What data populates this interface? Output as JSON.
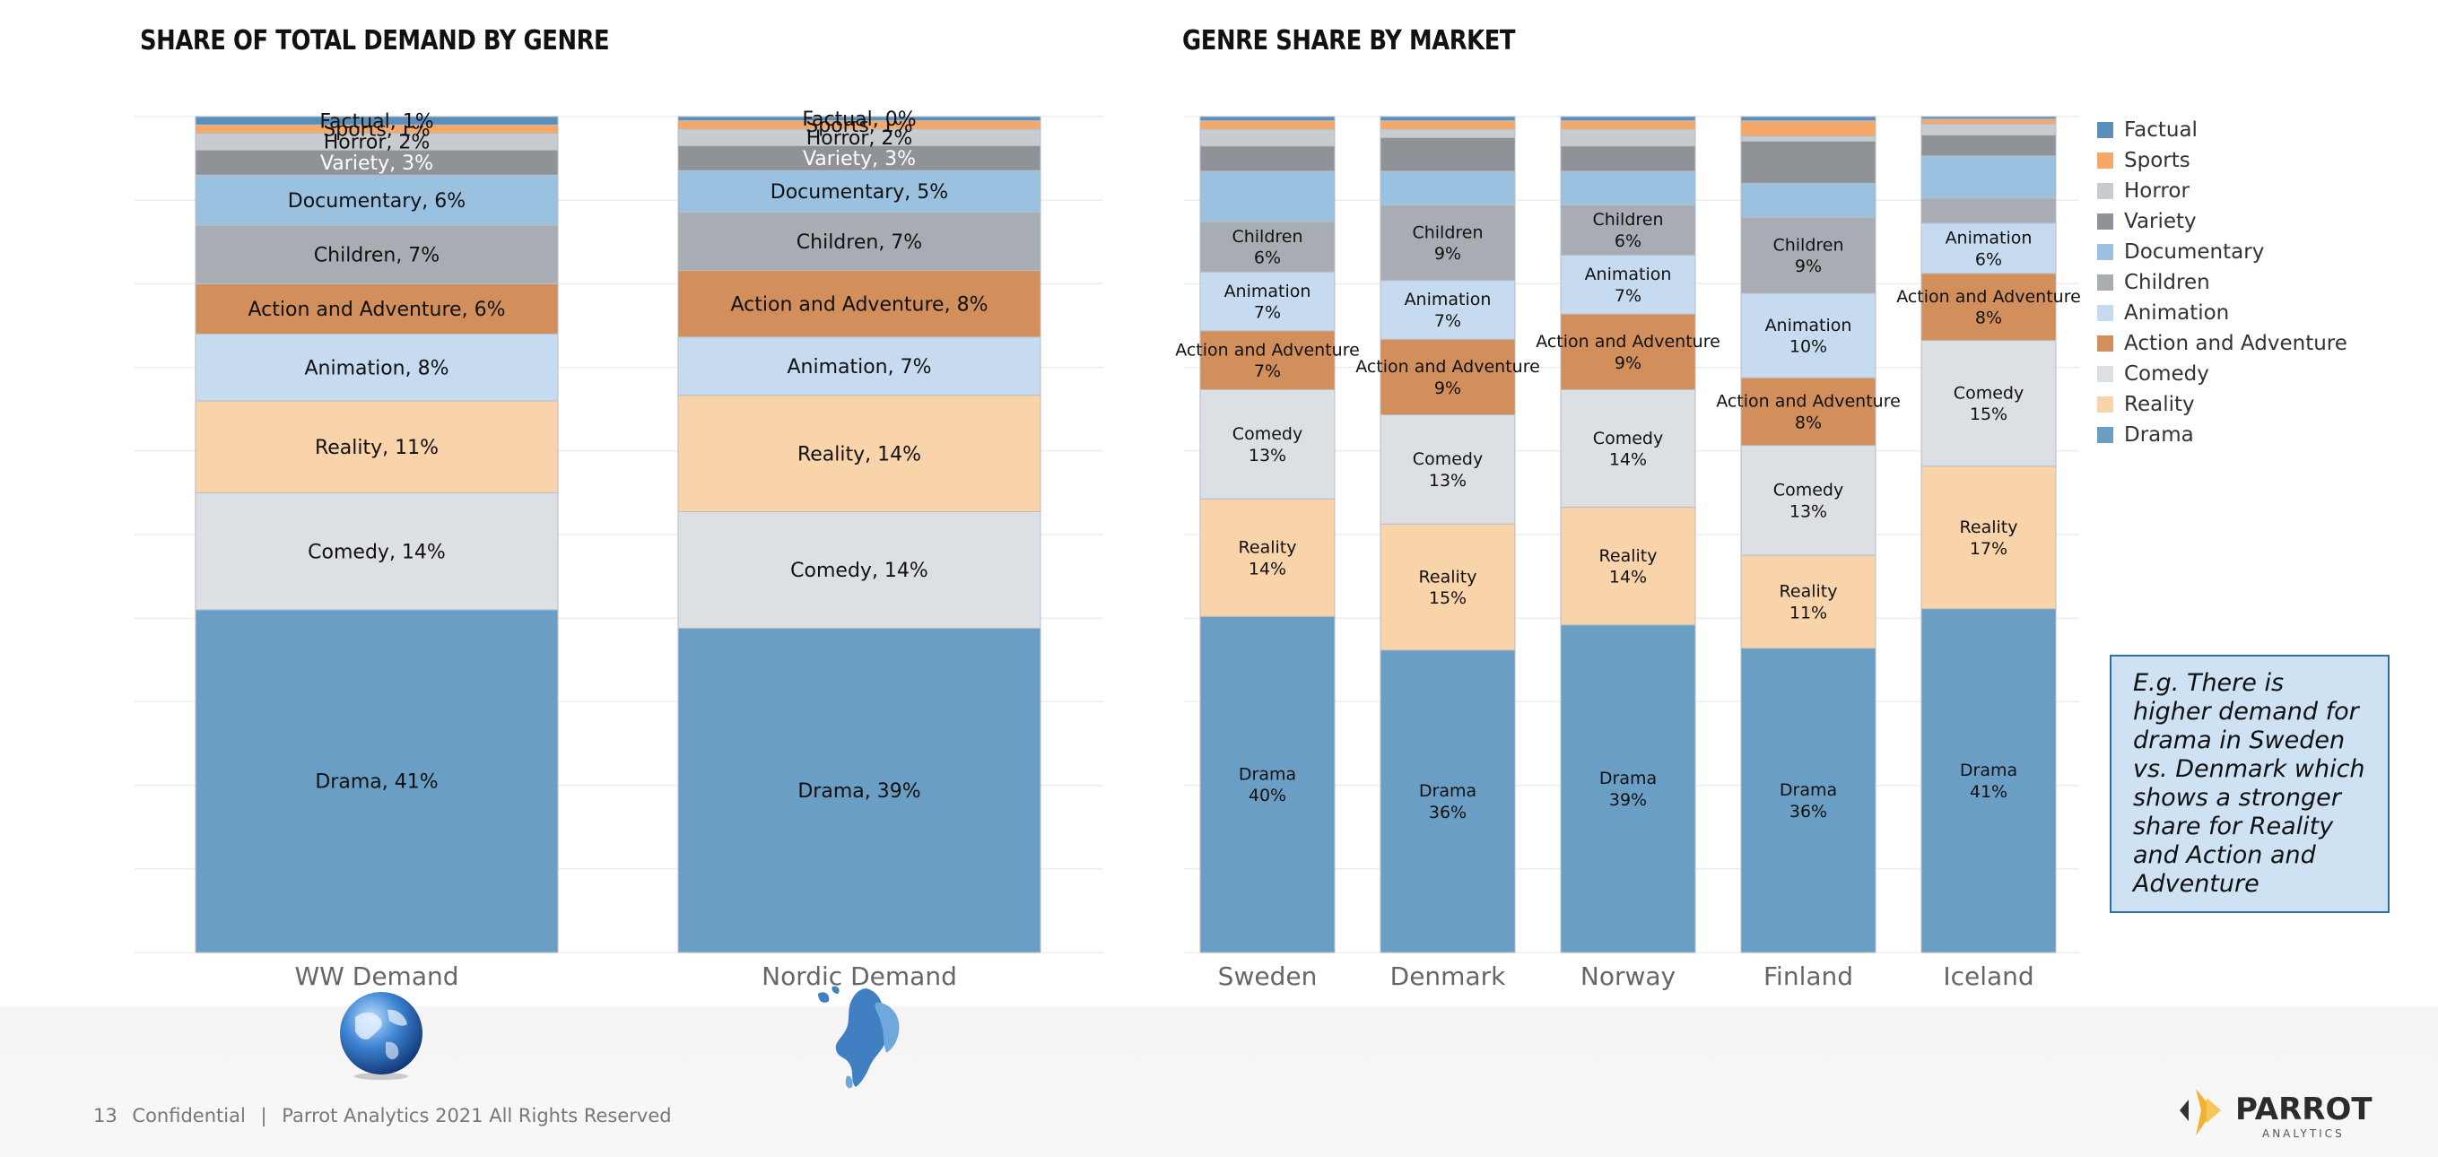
{
  "footer": {
    "page_number": "13",
    "confidential": "Confidential",
    "separator": "|",
    "copyright": "Parrot Analytics 2021 All Rights Reserved"
  },
  "callout": {
    "text": "E.g. There is higher demand for drama in Sweden vs. Denmark which shows a stronger share for Reality and Action and Adventure"
  },
  "logo": {
    "name": "PARROT",
    "sub": "ANALYTICS"
  },
  "icons": {
    "globe": "globe-icon",
    "nordic_map": "nordic-map-icon",
    "logo_mark": "parrot-logo-icon"
  },
  "colors": {
    "Drama": "#6a9ec5",
    "Reality": "#f9d3aa",
    "Comedy": "#dcdfe4",
    "Action and Adventure": "#d28f5c",
    "Animation": "#c6dbef",
    "Children": "#a8adb4",
    "Documentary": "#9ac2e0",
    "Variety": "#8f9397",
    "Horror": "#c8cbd0",
    "Sports": "#f5a867",
    "Factual": "#5a8fbc",
    "label_light": "#ffffff",
    "label_dark": "#111111"
  },
  "chart_data": [
    {
      "type": "bar",
      "stacked": true,
      "percent": true,
      "title": "SHARE OF TOTAL DEMAND BY GENRE",
      "categories": [
        "WW Demand",
        "Nordic Demand"
      ],
      "label_style": "inline",
      "series": [
        {
          "name": "Drama",
          "values": [
            41,
            39
          ],
          "labels": [
            "Drama, 41%",
            "Drama, 39%"
          ]
        },
        {
          "name": "Comedy",
          "values": [
            14,
            14
          ],
          "labels": [
            "Comedy, 14%",
            "Comedy, 14%"
          ]
        },
        {
          "name": "Reality",
          "values": [
            11,
            14
          ],
          "labels": [
            "Reality, 11%",
            "Reality, 14%"
          ]
        },
        {
          "name": "Animation",
          "values": [
            8,
            7
          ],
          "labels": [
            "Animation, 8%",
            "Animation, 7%"
          ]
        },
        {
          "name": "Action and Adventure",
          "values": [
            6,
            8
          ],
          "labels": [
            "Action and Adventure, 6%",
            "Action and Adventure, 8%"
          ]
        },
        {
          "name": "Children",
          "values": [
            7,
            7
          ],
          "labels": [
            "Children, 7%",
            "Children, 7%"
          ]
        },
        {
          "name": "Documentary",
          "values": [
            6,
            5
          ],
          "labels": [
            "Documentary, 6%",
            "Documentary, 5%"
          ]
        },
        {
          "name": "Variety",
          "values": [
            3,
            3
          ],
          "labels": [
            "Variety, 3%",
            "Variety, 3%"
          ]
        },
        {
          "name": "Horror",
          "values": [
            2,
            2
          ],
          "labels": [
            "Horror, 2%",
            "Horror, 2%"
          ]
        },
        {
          "name": "Sports",
          "values": [
            1,
            1
          ],
          "labels": [
            "Sports, 1%",
            "Sports, 1%"
          ]
        },
        {
          "name": "Factual",
          "values": [
            1,
            0.5
          ],
          "labels": [
            "Factual, 1%",
            "Factual, 0%"
          ]
        }
      ],
      "ylim": [
        0,
        100
      ],
      "grid": true,
      "legend": "none"
    },
    {
      "type": "bar",
      "stacked": true,
      "percent": true,
      "title": "GENRE SHARE BY MARKET",
      "categories": [
        "Sweden",
        "Denmark",
        "Norway",
        "Finland",
        "Iceland"
      ],
      "label_style": "two-line",
      "series": [
        {
          "name": "Drama",
          "values": [
            40,
            36,
            39,
            36,
            41
          ],
          "labels": [
            "Drama\n40%",
            "Drama\n36%",
            "Drama\n39%",
            "Drama\n36%",
            "Drama\n41%"
          ]
        },
        {
          "name": "Reality",
          "values": [
            14,
            15,
            14,
            11,
            17
          ],
          "labels": [
            "Reality\n14%",
            "Reality\n15%",
            "Reality\n14%",
            "Reality\n11%",
            "Reality\n17%"
          ]
        },
        {
          "name": "Comedy",
          "values": [
            13,
            13,
            14,
            13,
            15
          ],
          "labels": [
            "Comedy\n13%",
            "Comedy\n13%",
            "Comedy\n14%",
            "Comedy\n13%",
            "Comedy\n15%"
          ]
        },
        {
          "name": "Action and Adventure",
          "values": [
            7,
            9,
            9,
            8,
            8
          ],
          "labels": [
            "Action and Adventure\n7%",
            "Action and Adventure\n9%",
            "Action and Adventure\n9%",
            "Action and Adventure\n8%",
            "Action and Adventure\n8%"
          ]
        },
        {
          "name": "Animation",
          "values": [
            7,
            7,
            7,
            10,
            6
          ],
          "labels": [
            "Animation\n7%",
            "Animation\n7%",
            "Animation\n7%",
            "Animation\n10%",
            "Animation\n6%"
          ]
        },
        {
          "name": "Children",
          "values": [
            6,
            9,
            6,
            9,
            3
          ],
          "labels": [
            "Children\n6%",
            "Children\n9%",
            "Children\n6%",
            "Children\n9%",
            ""
          ]
        },
        {
          "name": "Documentary",
          "values": [
            6,
            4,
            4,
            4,
            5
          ],
          "labels": [
            "",
            "",
            "",
            "",
            ""
          ]
        },
        {
          "name": "Variety",
          "values": [
            3,
            4,
            3,
            5,
            2.5
          ],
          "labels": [
            "",
            "",
            "",
            "",
            ""
          ]
        },
        {
          "name": "Horror",
          "values": [
            2,
            1,
            2,
            0.6,
            1.3
          ],
          "labels": [
            "",
            "",
            "",
            "",
            ""
          ]
        },
        {
          "name": "Sports",
          "values": [
            1,
            1,
            1,
            1.8,
            0.6
          ],
          "labels": [
            "",
            "",
            "",
            "",
            ""
          ]
        },
        {
          "name": "Factual",
          "values": [
            0.5,
            0.5,
            0.5,
            0.5,
            0.3
          ],
          "labels": [
            "",
            "",
            "",
            "",
            ""
          ]
        }
      ],
      "ylim": [
        0,
        100
      ],
      "grid": true,
      "legend": "right",
      "legend_entries": [
        "Factual",
        "Sports",
        "Horror",
        "Variety",
        "Documentary",
        "Children",
        "Animation",
        "Action and Adventure",
        "Comedy",
        "Reality",
        "Drama"
      ]
    }
  ]
}
